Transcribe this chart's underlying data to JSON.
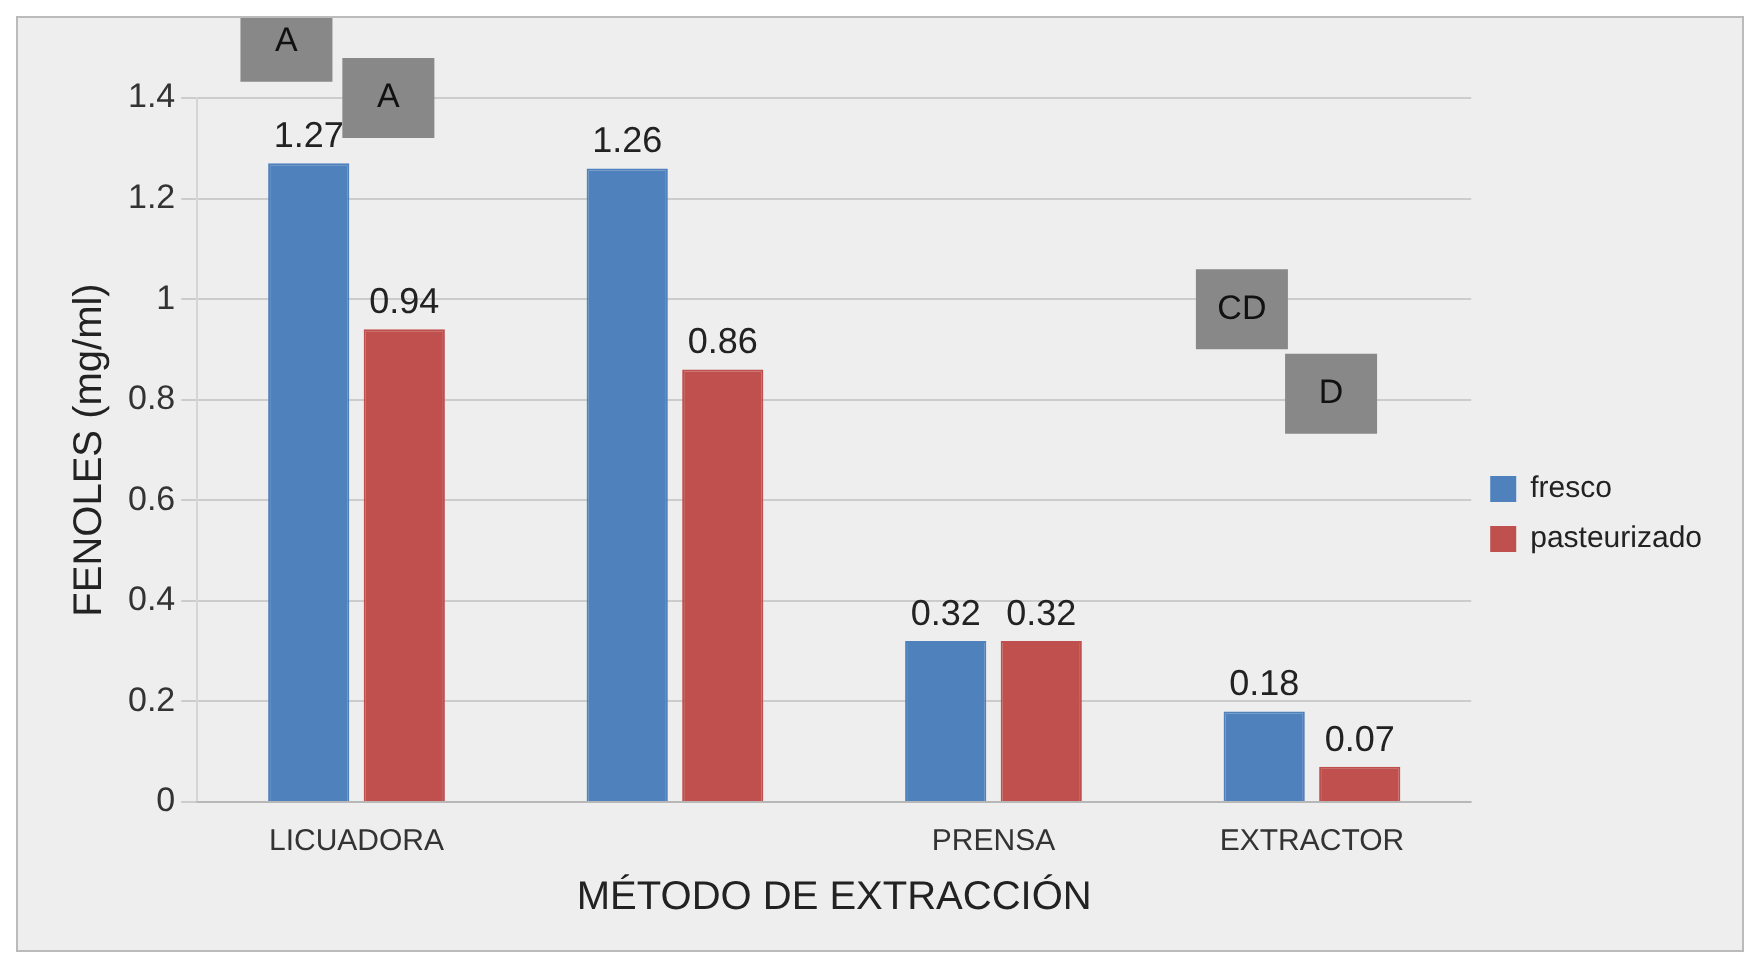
{
  "chart_data": {
    "type": "bar",
    "xlabel": "MÉTODO DE EXTRACCIÓN",
    "ylabel": "FENOLES (mg/ml)",
    "categories": [
      "LICUADORA",
      null,
      "PRENSA",
      "EXTRACTOR"
    ],
    "series": [
      {
        "name": "fresco",
        "color": "#4f81bd",
        "values": [
          1.27,
          1.26,
          0.32,
          0.18
        ]
      },
      {
        "name": "pasteurizado",
        "color": "#c0504d",
        "values": [
          0.94,
          0.86,
          0.32,
          0.07
        ]
      }
    ],
    "ylim": [
      0,
      1.4
    ],
    "yticks": [
      0,
      0.2,
      0.4,
      0.6,
      0.8,
      1,
      1.2,
      1.4
    ],
    "grid": "y",
    "legend": "right",
    "data_labels": true,
    "annotations": [
      "A",
      "A",
      "CD",
      "D"
    ]
  }
}
